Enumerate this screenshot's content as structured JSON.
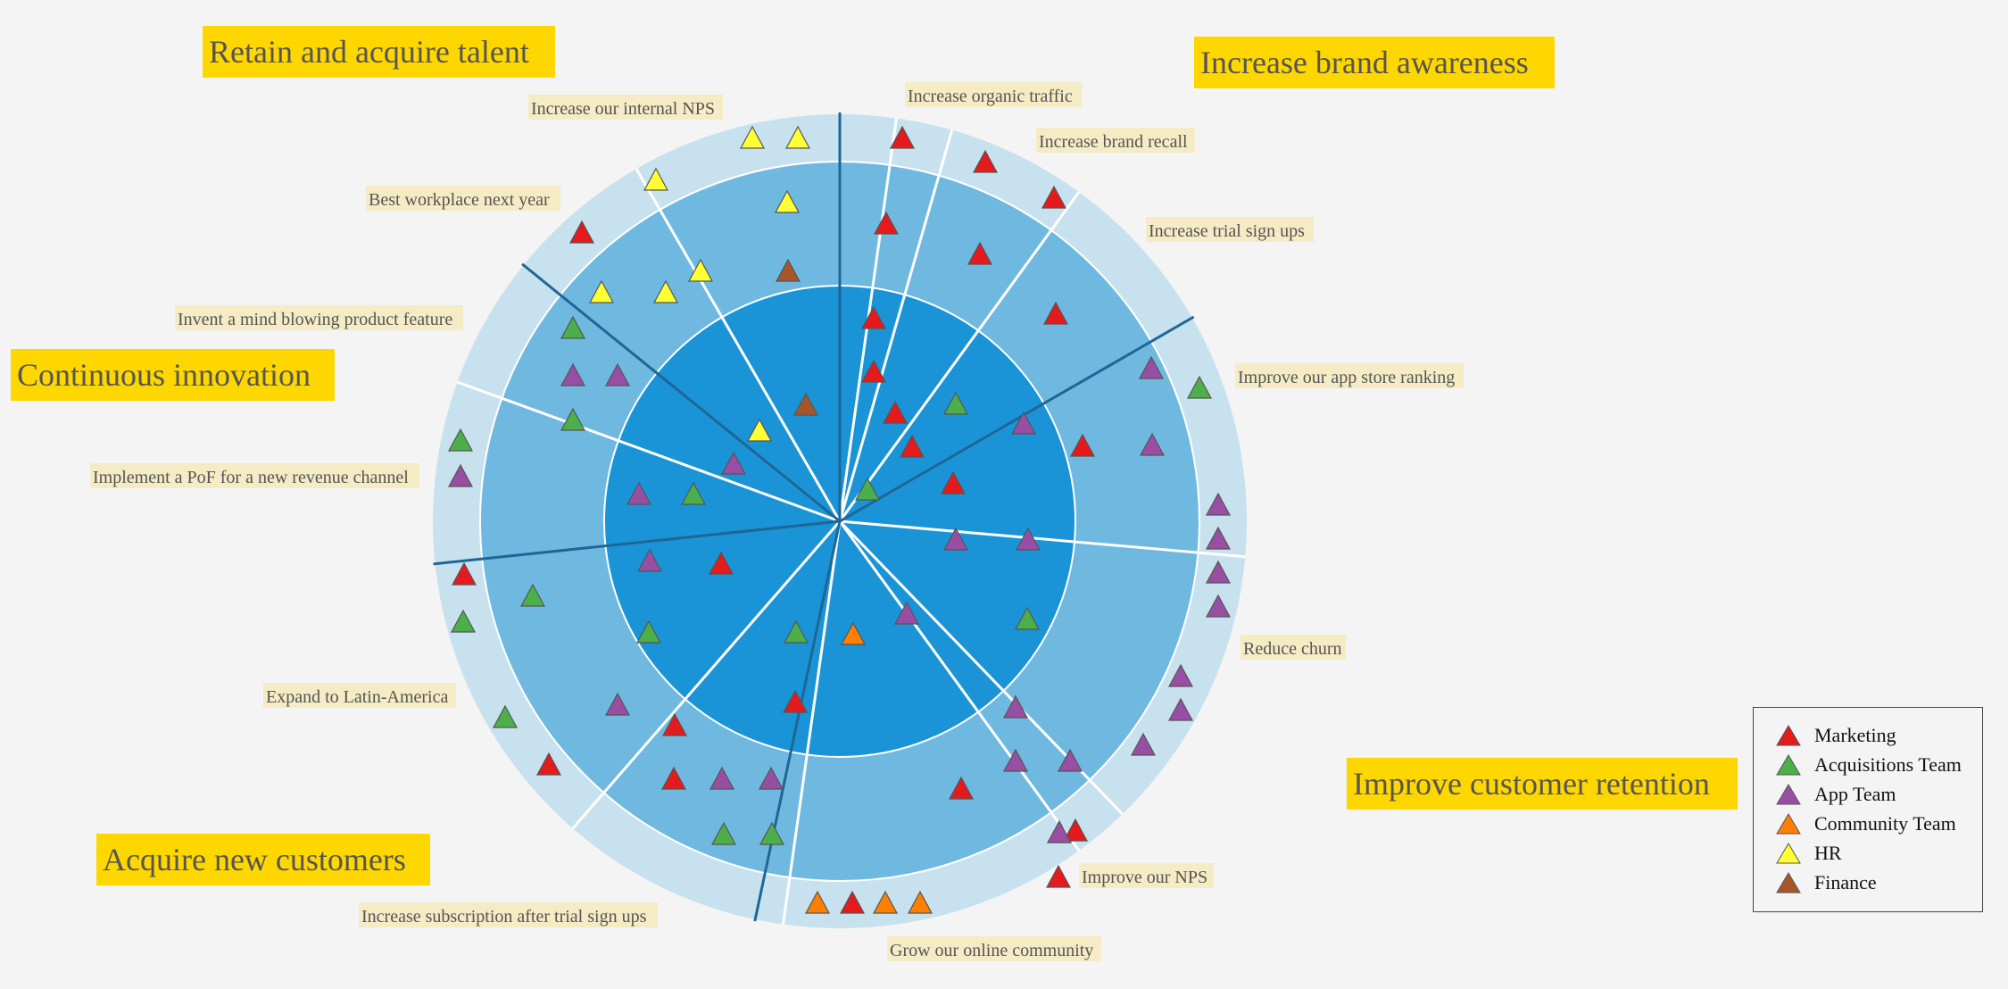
{
  "teams": [
    {
      "key": "marketing",
      "label": "Marketing",
      "color": "#e41a1c"
    },
    {
      "key": "acquisitions",
      "label": "Acquisitions Team",
      "color": "#4daf4a"
    },
    {
      "key": "app",
      "label": "App Team",
      "color": "#984ea3"
    },
    {
      "key": "community",
      "label": "Community Team",
      "color": "#ff7f00"
    },
    {
      "key": "hr",
      "label": "HR",
      "color": "#ffff33"
    },
    {
      "key": "finance",
      "label": "Finance",
      "color": "#a65628"
    }
  ],
  "colors": {
    "background": "#f4f4f4",
    "ring_inner": "#1a94d6",
    "ring_middle": "#6fb9e0",
    "ring_outer": "#c8e1ee",
    "goal_divider": "#1f6696",
    "title_background": "#ffd700",
    "label_background": "#f5ebc4",
    "text": "#555555"
  },
  "goals": [
    {
      "title": "Retain and acquire talent"
    },
    {
      "title": "Increase brand awareness"
    },
    {
      "title": "Continuous innovation"
    },
    {
      "title": "Improve customer retention"
    },
    {
      "title": "Acquire new customers"
    }
  ],
  "objectives": [
    {
      "label": "Increase our internal NPS",
      "goal": "Retain and acquire talent"
    },
    {
      "label": "Best workplace next year",
      "goal": "Retain and acquire talent"
    },
    {
      "label": "Increase organic traffic",
      "goal": "Increase brand awareness"
    },
    {
      "label": "Increase brand recall",
      "goal": "Increase brand awareness"
    },
    {
      "label": "Increase trial sign ups",
      "goal": "Increase brand awareness"
    },
    {
      "label": "Improve our app store ranking",
      "goal": "Continuous innovation"
    },
    {
      "label": "Invent a mind blowing product feature",
      "goal": "Continuous innovation"
    },
    {
      "label": "Implement a PoF for a new revenue channel",
      "goal": "Continuous innovation"
    },
    {
      "label": "Reduce churn",
      "goal": "Improve customer retention"
    },
    {
      "label": "Improve our NPS",
      "goal": "Improve customer retention"
    },
    {
      "label": "Grow our online community",
      "goal": "Improve customer retention"
    },
    {
      "label": "Expand to Latin-America",
      "goal": "Acquire new customers"
    },
    {
      "label": "Increase subscription after trial sign ups",
      "goal": "Acquire new customers"
    }
  ],
  "rings": [
    {
      "key": "inner"
    },
    {
      "key": "middle"
    },
    {
      "key": "outer"
    }
  ]
}
